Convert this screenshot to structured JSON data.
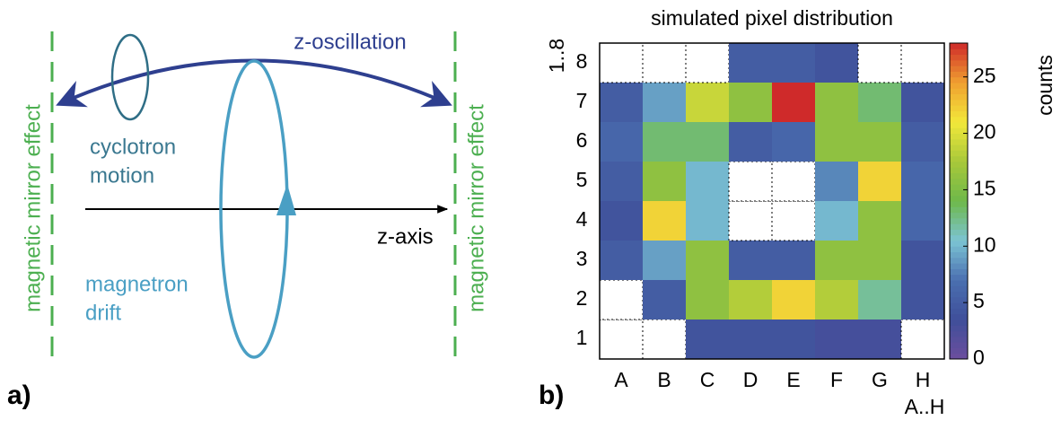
{
  "panel_labels": [
    "a)",
    "b)"
  ],
  "diagram": {
    "mirror_left": "magnetic mirror effect",
    "mirror_right": "magnetic mirror effect",
    "z_oscillation": "z-oscillation",
    "cyclotron": [
      "cyclotron",
      "motion"
    ],
    "magnetron": [
      "magnetron",
      "drift"
    ],
    "z_axis": "z-axis"
  },
  "chart_data": {
    "type": "heatmap",
    "title": "simulated pixel distribution",
    "x_label": "A..H",
    "y_label": "1..8",
    "colorbar_label": "counts",
    "x": [
      "A",
      "B",
      "C",
      "D",
      "E",
      "F",
      "G",
      "H"
    ],
    "y": [
      "1",
      "2",
      "3",
      "4",
      "5",
      "6",
      "7",
      "8"
    ],
    "values": [
      [
        null,
        null,
        4,
        4,
        4,
        3,
        3,
        null
      ],
      [
        null,
        5,
        16,
        18,
        22,
        18,
        12,
        4
      ],
      [
        5,
        9,
        16,
        5,
        5,
        16,
        16,
        4
      ],
      [
        4,
        22,
        10,
        null,
        null,
        10,
        16,
        6
      ],
      [
        5,
        16,
        10,
        null,
        null,
        8,
        22,
        6
      ],
      [
        6,
        13,
        13,
        5,
        6,
        16,
        16,
        5
      ],
      [
        5,
        9,
        19,
        16,
        28,
        16,
        13,
        4
      ],
      [
        null,
        null,
        null,
        5,
        5,
        4,
        null,
        null
      ]
    ],
    "zlim": [
      0,
      28
    ],
    "zticks": [
      0,
      5,
      10,
      15,
      20,
      25
    ],
    "colorscale": [
      "#6c4e9e",
      "#3f4f9a",
      "#4a6fb0",
      "#7cc4d4",
      "#6eb84a",
      "#a8c83a",
      "#f2e83a",
      "#f0a030",
      "#cf2a2a"
    ]
  }
}
